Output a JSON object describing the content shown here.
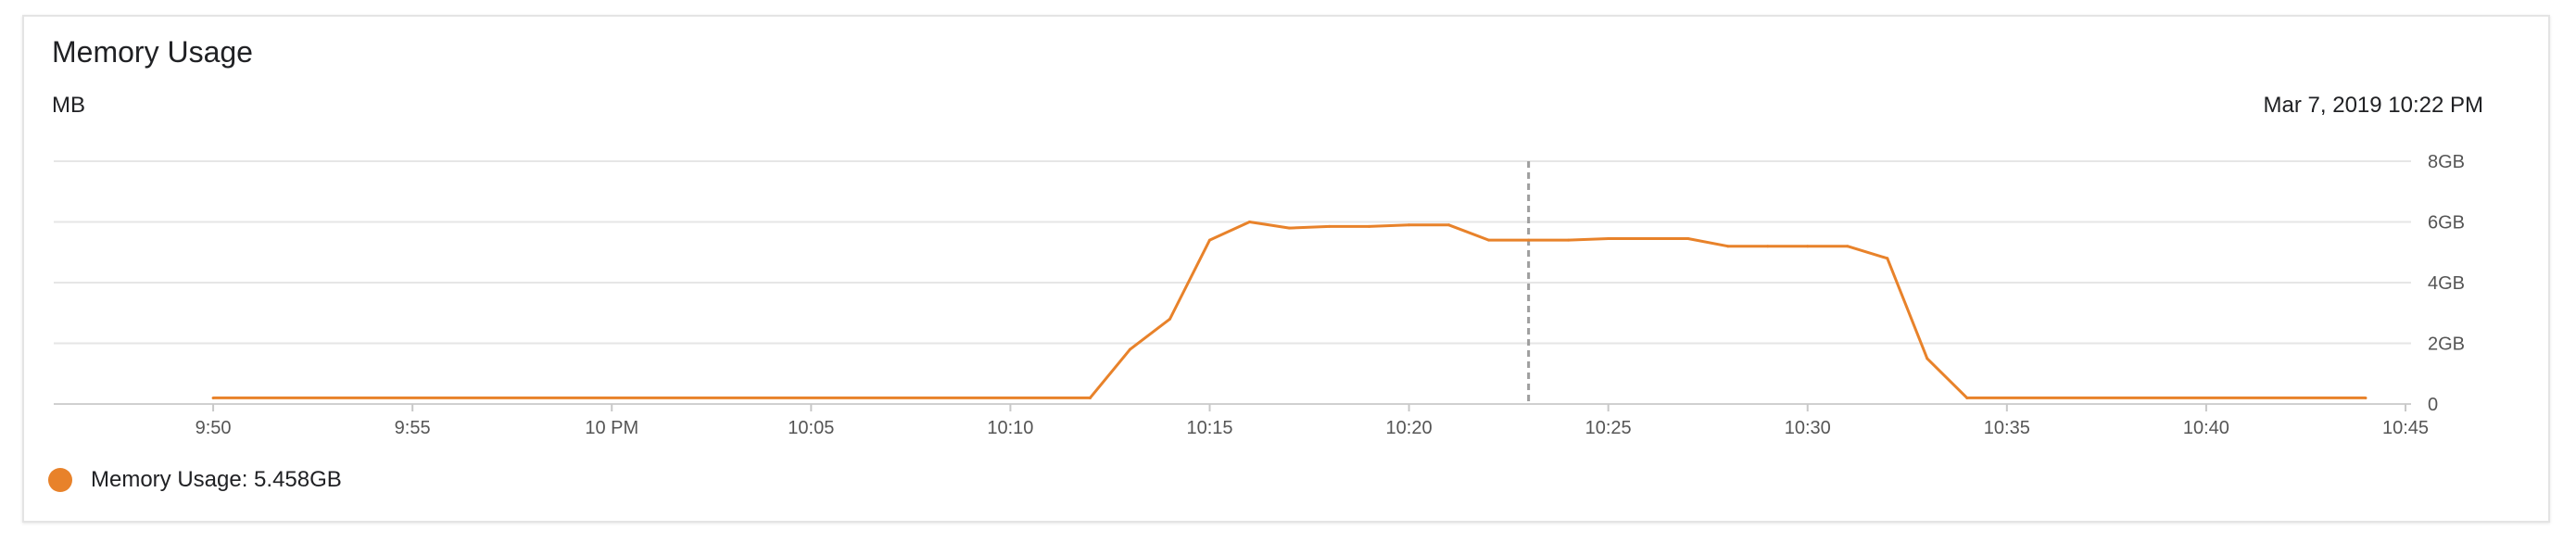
{
  "card": {
    "title": "Memory Usage",
    "unit": "MB",
    "timestamp": "Mar 7, 2019 10:22 PM"
  },
  "legend": {
    "label": "Memory Usage: 5.458GB",
    "color": "#e8822a"
  },
  "colors": {
    "line": "#e8822a",
    "grid": "#e6e6e6",
    "cursor": "#9e9e9e"
  },
  "chart_data": {
    "type": "line",
    "x_unit": "minutes",
    "xlim": [
      "9:46",
      "10:45"
    ],
    "ylim": [
      0,
      8
    ],
    "y_unit": "GB",
    "grid": true,
    "legend_position": "bottom-left",
    "cursor_time": "10:23",
    "x_ticks": [
      {
        "t": "9:50",
        "label": "9:50"
      },
      {
        "t": "9:55",
        "label": "9:55"
      },
      {
        "t": "10:00",
        "label": "10 PM"
      },
      {
        "t": "10:05",
        "label": "10:05"
      },
      {
        "t": "10:10",
        "label": "10:10"
      },
      {
        "t": "10:15",
        "label": "10:15"
      },
      {
        "t": "10:20",
        "label": "10:20"
      },
      {
        "t": "10:25",
        "label": "10:25"
      },
      {
        "t": "10:30",
        "label": "10:30"
      },
      {
        "t": "10:35",
        "label": "10:35"
      },
      {
        "t": "10:40",
        "label": "10:40"
      },
      {
        "t": "10:45",
        "label": "10:45"
      }
    ],
    "y_ticks": [
      {
        "v": 0,
        "label": "0"
      },
      {
        "v": 2,
        "label": "2GB"
      },
      {
        "v": 4,
        "label": "4GB"
      },
      {
        "v": 6,
        "label": "6GB"
      },
      {
        "v": 8,
        "label": "8GB"
      }
    ],
    "series": [
      {
        "name": "Memory Usage",
        "x": [
          "9:50",
          "10:12",
          "10:13",
          "10:14",
          "10:15",
          "10:16",
          "10:17",
          "10:18",
          "10:19",
          "10:20",
          "10:21",
          "10:22",
          "10:23",
          "10:24",
          "10:25",
          "10:26",
          "10:27",
          "10:28",
          "10:29",
          "10:30",
          "10:31",
          "10:32",
          "10:33",
          "10:34",
          "10:44"
        ],
        "y": [
          0.2,
          0.2,
          1.8,
          2.8,
          5.4,
          6.0,
          5.8,
          5.85,
          5.85,
          5.9,
          5.9,
          5.4,
          5.4,
          5.4,
          5.45,
          5.45,
          5.45,
          5.2,
          5.2,
          5.2,
          5.2,
          4.8,
          1.5,
          0.2,
          0.2
        ]
      }
    ]
  }
}
